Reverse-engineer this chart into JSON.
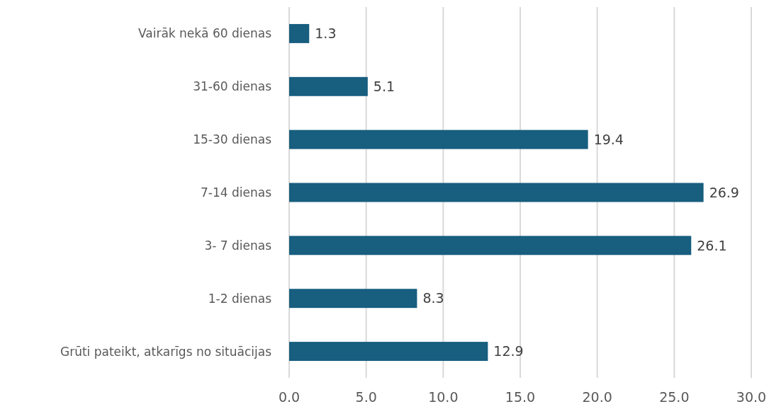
{
  "chart_data": {
    "type": "bar",
    "orientation": "horizontal",
    "categories": [
      "Vairāk nekā 60 dienas",
      "31-60 dienas",
      "15-30 dienas",
      "7-14 dienas",
      "3- 7 dienas",
      "1-2 dienas",
      "Grūti pateikt, atkarīgs no situācijas"
    ],
    "values": [
      1.3,
      5.1,
      19.4,
      26.9,
      26.1,
      8.3,
      12.9
    ],
    "color": "#175e7f",
    "xlim": [
      0,
      30
    ],
    "xticks": [
      {
        "value": 0,
        "label": "0.0"
      },
      {
        "value": 5,
        "label": "5.0"
      },
      {
        "value": 10,
        "label": "10.0"
      },
      {
        "value": 15,
        "label": "15.0"
      },
      {
        "value": 20,
        "label": "20.0"
      },
      {
        "value": 25,
        "label": "25.0"
      },
      {
        "value": 30,
        "label": "30.0"
      }
    ],
    "grid": "x",
    "data_labels": true
  }
}
